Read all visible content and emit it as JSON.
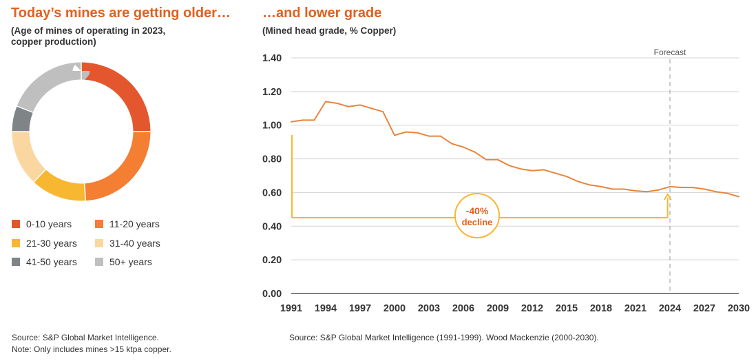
{
  "left_panel": {
    "title": "Today’s mines are getting older…",
    "subtitle_line1": "(Age of mines of operating in 2023,",
    "subtitle_line2": "copper production)",
    "source": "Source: S&P Global Market Intelligence.",
    "note": "Note: Only includes mines >15 ktpa copper."
  },
  "right_panel": {
    "title": "…and lower grade",
    "subtitle": "(Mined head grade, % Copper)",
    "source": "Source: S&P Global Market Intelligence (1991-1999). Wood Mackenzie (2000-2030).",
    "forecast_label": "Forecast",
    "decline_pct": "-40%",
    "decline_word": "decline"
  },
  "chart_data": [
    {
      "type": "pie",
      "donut": true,
      "categories": [
        "0-10 years",
        "11-20 years",
        "21-30 years",
        "31-40 years",
        "41-50 years",
        "50+ years"
      ],
      "values": [
        25,
        24,
        13,
        13,
        6,
        19
      ],
      "colors": [
        "#e4572e",
        "#f47e31",
        "#f7b731",
        "#fad7a0",
        "#7f8487",
        "#bfbfbf"
      ],
      "legend": "bottom"
    },
    {
      "type": "line",
      "x": [
        1991,
        1992,
        1993,
        1994,
        1995,
        1996,
        1997,
        1998,
        1999,
        2000,
        2001,
        2002,
        2003,
        2004,
        2005,
        2006,
        2007,
        2008,
        2009,
        2010,
        2011,
        2012,
        2013,
        2014,
        2015,
        2016,
        2017,
        2018,
        2019,
        2020,
        2021,
        2022,
        2023,
        2024,
        2025,
        2026,
        2027,
        2028,
        2029,
        2030
      ],
      "values": [
        1.02,
        1.03,
        1.03,
        1.14,
        1.13,
        1.11,
        1.12,
        1.1,
        1.08,
        0.94,
        0.96,
        0.955,
        0.935,
        0.935,
        0.89,
        0.87,
        0.84,
        0.795,
        0.795,
        0.76,
        0.74,
        0.73,
        0.735,
        0.715,
        0.695,
        0.665,
        0.645,
        0.635,
        0.62,
        0.62,
        0.61,
        0.605,
        0.615,
        0.635,
        0.63,
        0.63,
        0.62,
        0.605,
        0.595,
        0.575
      ],
      "x_ticks": [
        1991,
        1994,
        1997,
        2000,
        2003,
        2006,
        2009,
        2012,
        2015,
        2018,
        2021,
        2024,
        2027,
        2030
      ],
      "y_ticks": [
        "0.00",
        "0.20",
        "0.40",
        "0.60",
        "0.80",
        "1.00",
        "1.20",
        "1.40"
      ],
      "xlim": [
        1991,
        2030
      ],
      "ylim": [
        0,
        1.4
      ],
      "forecast_start": 2024,
      "grid": "horizontal",
      "line_color": "#e8853d",
      "annotation_color": "#f7b731"
    }
  ]
}
